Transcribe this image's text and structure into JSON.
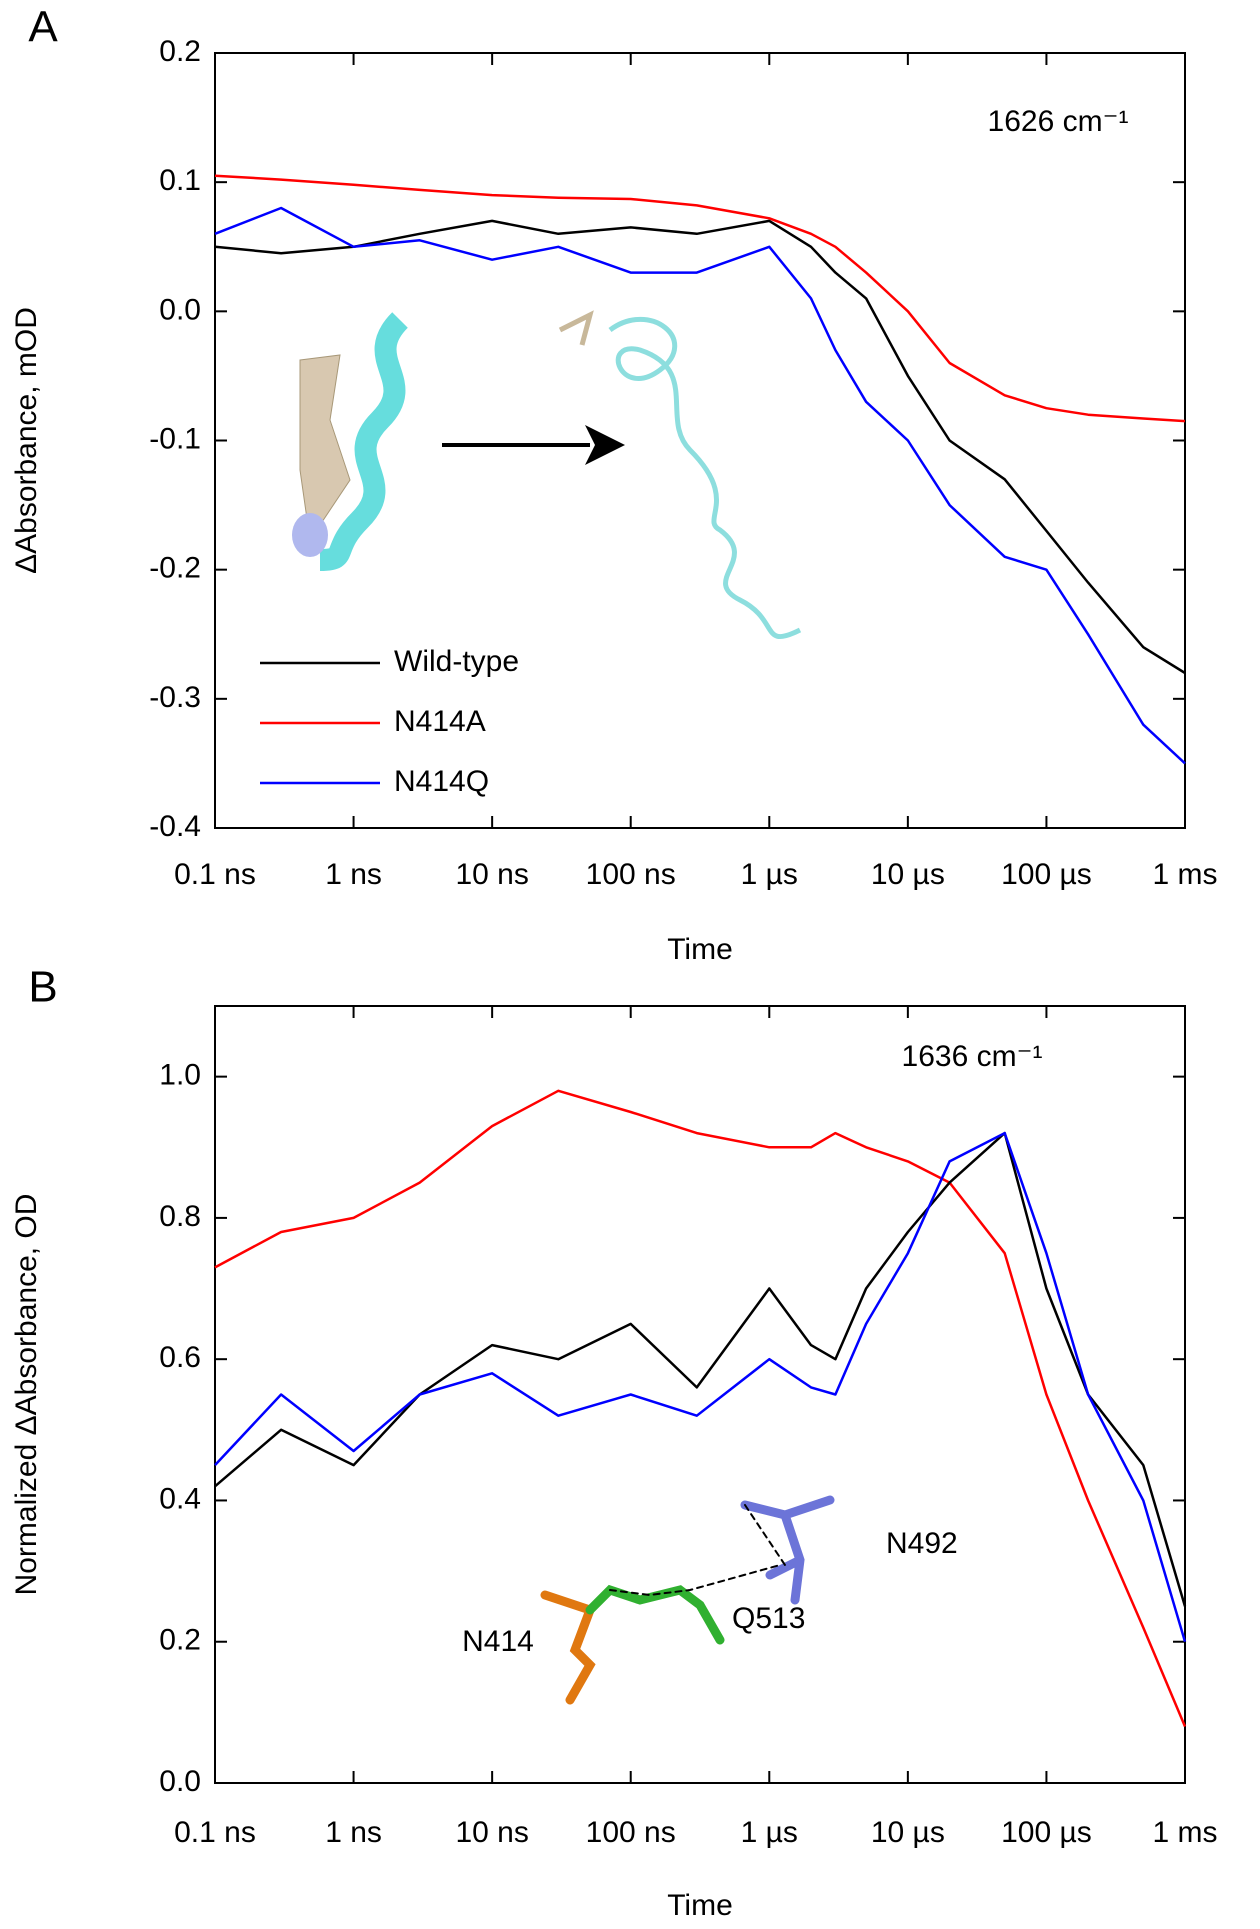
{
  "chart_data": [
    {
      "type": "line",
      "panel_label": "A",
      "annotation": "1626 cm⁻¹",
      "ylabel": "ΔAbsorbance, mOD",
      "xlabel": "Time",
      "xscale": "log",
      "xlim": [
        1e-10,
        0.001
      ],
      "xticks": [
        {
          "value": 1e-10,
          "label": "0.1 ns"
        },
        {
          "value": 1e-09,
          "label": "1 ns"
        },
        {
          "value": 1e-08,
          "label": "10 ns"
        },
        {
          "value": 1e-07,
          "label": "100 ns"
        },
        {
          "value": 1e-06,
          "label": "1 µs"
        },
        {
          "value": 1e-05,
          "label": "10 µs"
        },
        {
          "value": 0.0001,
          "label": "100 µs"
        },
        {
          "value": 0.001,
          "label": "1 ms"
        }
      ],
      "ylim": [
        -0.4,
        0.2
      ],
      "yticks": [
        -0.4,
        -0.3,
        -0.2,
        -0.1,
        {
          "value": 0,
          "label": "0.0"
        },
        0.1,
        0.2
      ],
      "legend": "lower left",
      "x": [
        1e-10,
        3e-10,
        1e-09,
        3e-09,
        1e-08,
        3e-08,
        1e-07,
        3e-07,
        1e-06,
        2e-06,
        3e-06,
        5e-06,
        1e-05,
        2e-05,
        5e-05,
        0.0001,
        0.0002,
        0.0005,
        0.001
      ],
      "series": [
        {
          "name": "Wild-type",
          "color": "#000000",
          "values": [
            0.05,
            0.045,
            0.05,
            0.06,
            0.07,
            0.06,
            0.065,
            0.06,
            0.07,
            0.05,
            0.03,
            0.01,
            -0.05,
            -0.1,
            -0.13,
            -0.17,
            -0.21,
            -0.26,
            -0.28
          ]
        },
        {
          "name": "N414A",
          "color": "#ff0000",
          "values": [
            0.105,
            0.102,
            0.098,
            0.094,
            0.09,
            0.088,
            0.087,
            0.082,
            0.072,
            0.06,
            0.05,
            0.03,
            0.0,
            -0.04,
            -0.065,
            -0.075,
            -0.08,
            -0.083,
            -0.085
          ]
        },
        {
          "name": "N414Q",
          "color": "#0000ff",
          "values": [
            0.06,
            0.08,
            0.05,
            0.055,
            0.04,
            0.05,
            0.03,
            0.03,
            0.05,
            0.01,
            -0.03,
            -0.07,
            -0.1,
            -0.15,
            -0.19,
            -0.2,
            -0.25,
            -0.32,
            -0.35
          ]
        }
      ]
    },
    {
      "type": "line",
      "panel_label": "B",
      "annotation": "1636 cm⁻¹",
      "structure_labels": [
        "N492",
        "Q513",
        "N414"
      ],
      "ylabel": "Normalized ΔAbsorbance, OD",
      "xlabel": "Time",
      "xscale": "log",
      "xlim": [
        1e-10,
        0.001
      ],
      "xticks": [
        {
          "value": 1e-10,
          "label": "0.1 ns"
        },
        {
          "value": 1e-09,
          "label": "1 ns"
        },
        {
          "value": 1e-08,
          "label": "10 ns"
        },
        {
          "value": 1e-07,
          "label": "100 ns"
        },
        {
          "value": 1e-06,
          "label": "1 µs"
        },
        {
          "value": 1e-05,
          "label": "10 µs"
        },
        {
          "value": 0.0001,
          "label": "100 µs"
        },
        {
          "value": 0.001,
          "label": "1 ms"
        }
      ],
      "ylim": [
        0,
        1.1
      ],
      "yticks": [
        {
          "value": 0,
          "label": "0.0"
        },
        0.2,
        0.4,
        0.6,
        0.8,
        {
          "value": 1,
          "label": "1.0"
        }
      ],
      "x": [
        1e-10,
        3e-10,
        1e-09,
        3e-09,
        1e-08,
        3e-08,
        1e-07,
        3e-07,
        1e-06,
        2e-06,
        3e-06,
        5e-06,
        1e-05,
        2e-05,
        5e-05,
        0.0001,
        0.0002,
        0.0005,
        0.001
      ],
      "series": [
        {
          "color": "#ff0000",
          "values": [
            0.73,
            0.78,
            0.8,
            0.85,
            0.93,
            0.98,
            0.95,
            0.92,
            0.9,
            0.9,
            0.92,
            0.9,
            0.88,
            0.85,
            0.75,
            0.55,
            0.4,
            0.22,
            0.08
          ]
        },
        {
          "color": "#000000",
          "values": [
            0.42,
            0.5,
            0.45,
            0.55,
            0.62,
            0.6,
            0.65,
            0.56,
            0.7,
            0.62,
            0.6,
            0.7,
            0.78,
            0.85,
            0.92,
            0.7,
            0.55,
            0.45,
            0.25
          ]
        },
        {
          "color": "#0000ff",
          "values": [
            0.45,
            0.55,
            0.47,
            0.55,
            0.58,
            0.52,
            0.55,
            0.52,
            0.6,
            0.56,
            0.55,
            0.65,
            0.75,
            0.88,
            0.92,
            0.75,
            0.55,
            0.4,
            0.2
          ]
        }
      ]
    }
  ]
}
